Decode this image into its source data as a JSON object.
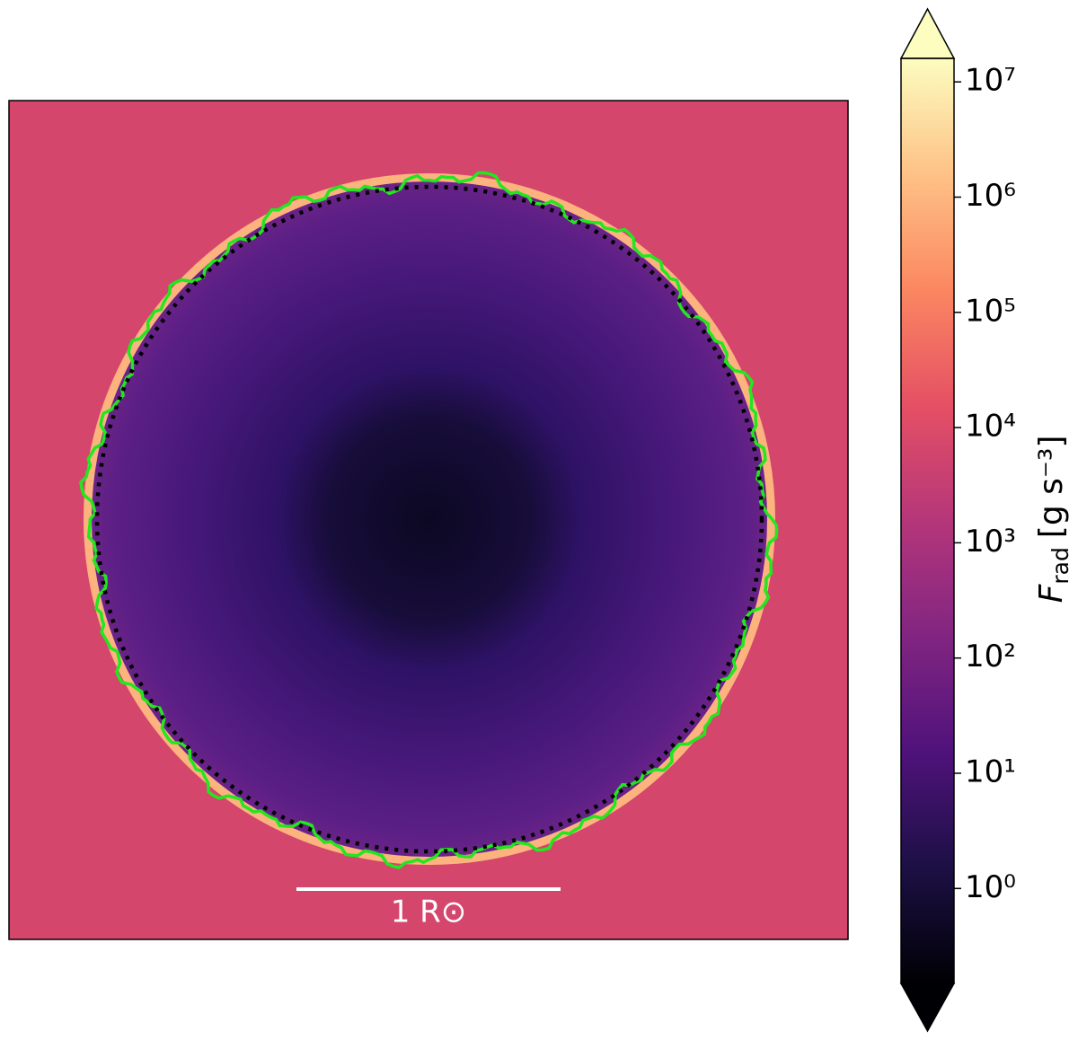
{
  "chart_data": {
    "type": "image",
    "colormap": "magma",
    "colorbar": {
      "label": {
        "symbol": "F",
        "subscript": "rad",
        "units": "[g s⁻³]"
      },
      "log": true,
      "extend": "both",
      "clim": [
        0.15,
        16000000
      ],
      "ticks": [
        {
          "value": 1,
          "label": "10⁰"
        },
        {
          "value": 10,
          "label": "10¹"
        },
        {
          "value": 100,
          "label": "10²"
        },
        {
          "value": 1000,
          "label": "10³"
        },
        {
          "value": 10000,
          "label": "10⁴"
        },
        {
          "value": 100000,
          "label": "10⁵"
        },
        {
          "value": 1000000,
          "label": "10⁶"
        },
        {
          "value": 10000000,
          "label": "10⁷"
        }
      ]
    },
    "scale_bar": {
      "label": "1 R⊙"
    }
  }
}
